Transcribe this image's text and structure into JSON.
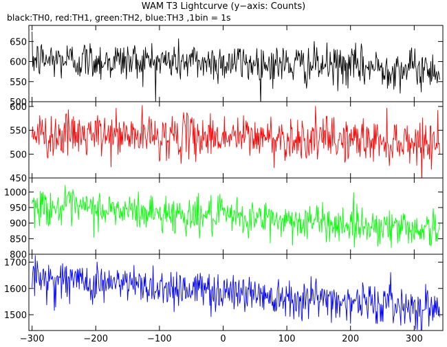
{
  "chart_data": {
    "type": "line",
    "title": "WAM T3 Lightcurve (y−axis: Counts)",
    "subtitle": "black:TH0, red:TH1, green:TH2, blue:TH3 ,1bin = 1s",
    "xlabel": "",
    "ylabel": "",
    "xlim": [
      -305,
      345
    ],
    "x_ticks": [
      -300,
      -200,
      -100,
      0,
      100,
      200,
      300
    ],
    "x_tick_labels": [
      "−300",
      "−200",
      "−100",
      "0",
      "100",
      "200",
      "300"
    ],
    "x_range": [
      -300,
      340
    ],
    "bin_seconds": 1,
    "grid": false,
    "legend": "none",
    "panels": [
      {
        "name": "TH0",
        "color": "#000000",
        "ylim": [
          500,
          690
        ],
        "y_ticks": [
          500,
          550,
          600,
          650
        ],
        "y_tick_labels": [
          "500",
          "550",
          "600",
          "650"
        ],
        "trend": [
          [
            -300,
            605
          ],
          [
            0,
            598
          ],
          [
            340,
            580
          ]
        ],
        "noise_sd": 25
      },
      {
        "name": "TH1",
        "color": "#ff0000",
        "ylim": [
          450,
          610
        ],
        "y_ticks": [
          450,
          500,
          550,
          600
        ],
        "y_tick_labels": [
          "450",
          "500",
          "550",
          "600"
        ],
        "trend": [
          [
            -300,
            540
          ],
          [
            0,
            537
          ],
          [
            340,
            525
          ]
        ],
        "noise_sd": 23
      },
      {
        "name": "TH2",
        "color": "#00ff00",
        "ylim": [
          800,
          1045
        ],
        "y_ticks": [
          800,
          850,
          900,
          950,
          1000
        ],
        "y_tick_labels": [
          "800",
          "850",
          "900",
          "950",
          "1000"
        ],
        "trend": [
          [
            -300,
            955
          ],
          [
            0,
            920
          ],
          [
            340,
            880
          ]
        ],
        "noise_sd": 30
      },
      {
        "name": "TH3",
        "color": "#0000ff",
        "ylim": [
          1440,
          1730
        ],
        "y_ticks": [
          1500,
          1600,
          1700
        ],
        "y_tick_labels": [
          "1500",
          "1600",
          "1700"
        ],
        "trend": [
          [
            -300,
            1640
          ],
          [
            0,
            1590
          ],
          [
            340,
            1525
          ]
        ],
        "noise_sd": 38
      }
    ]
  }
}
